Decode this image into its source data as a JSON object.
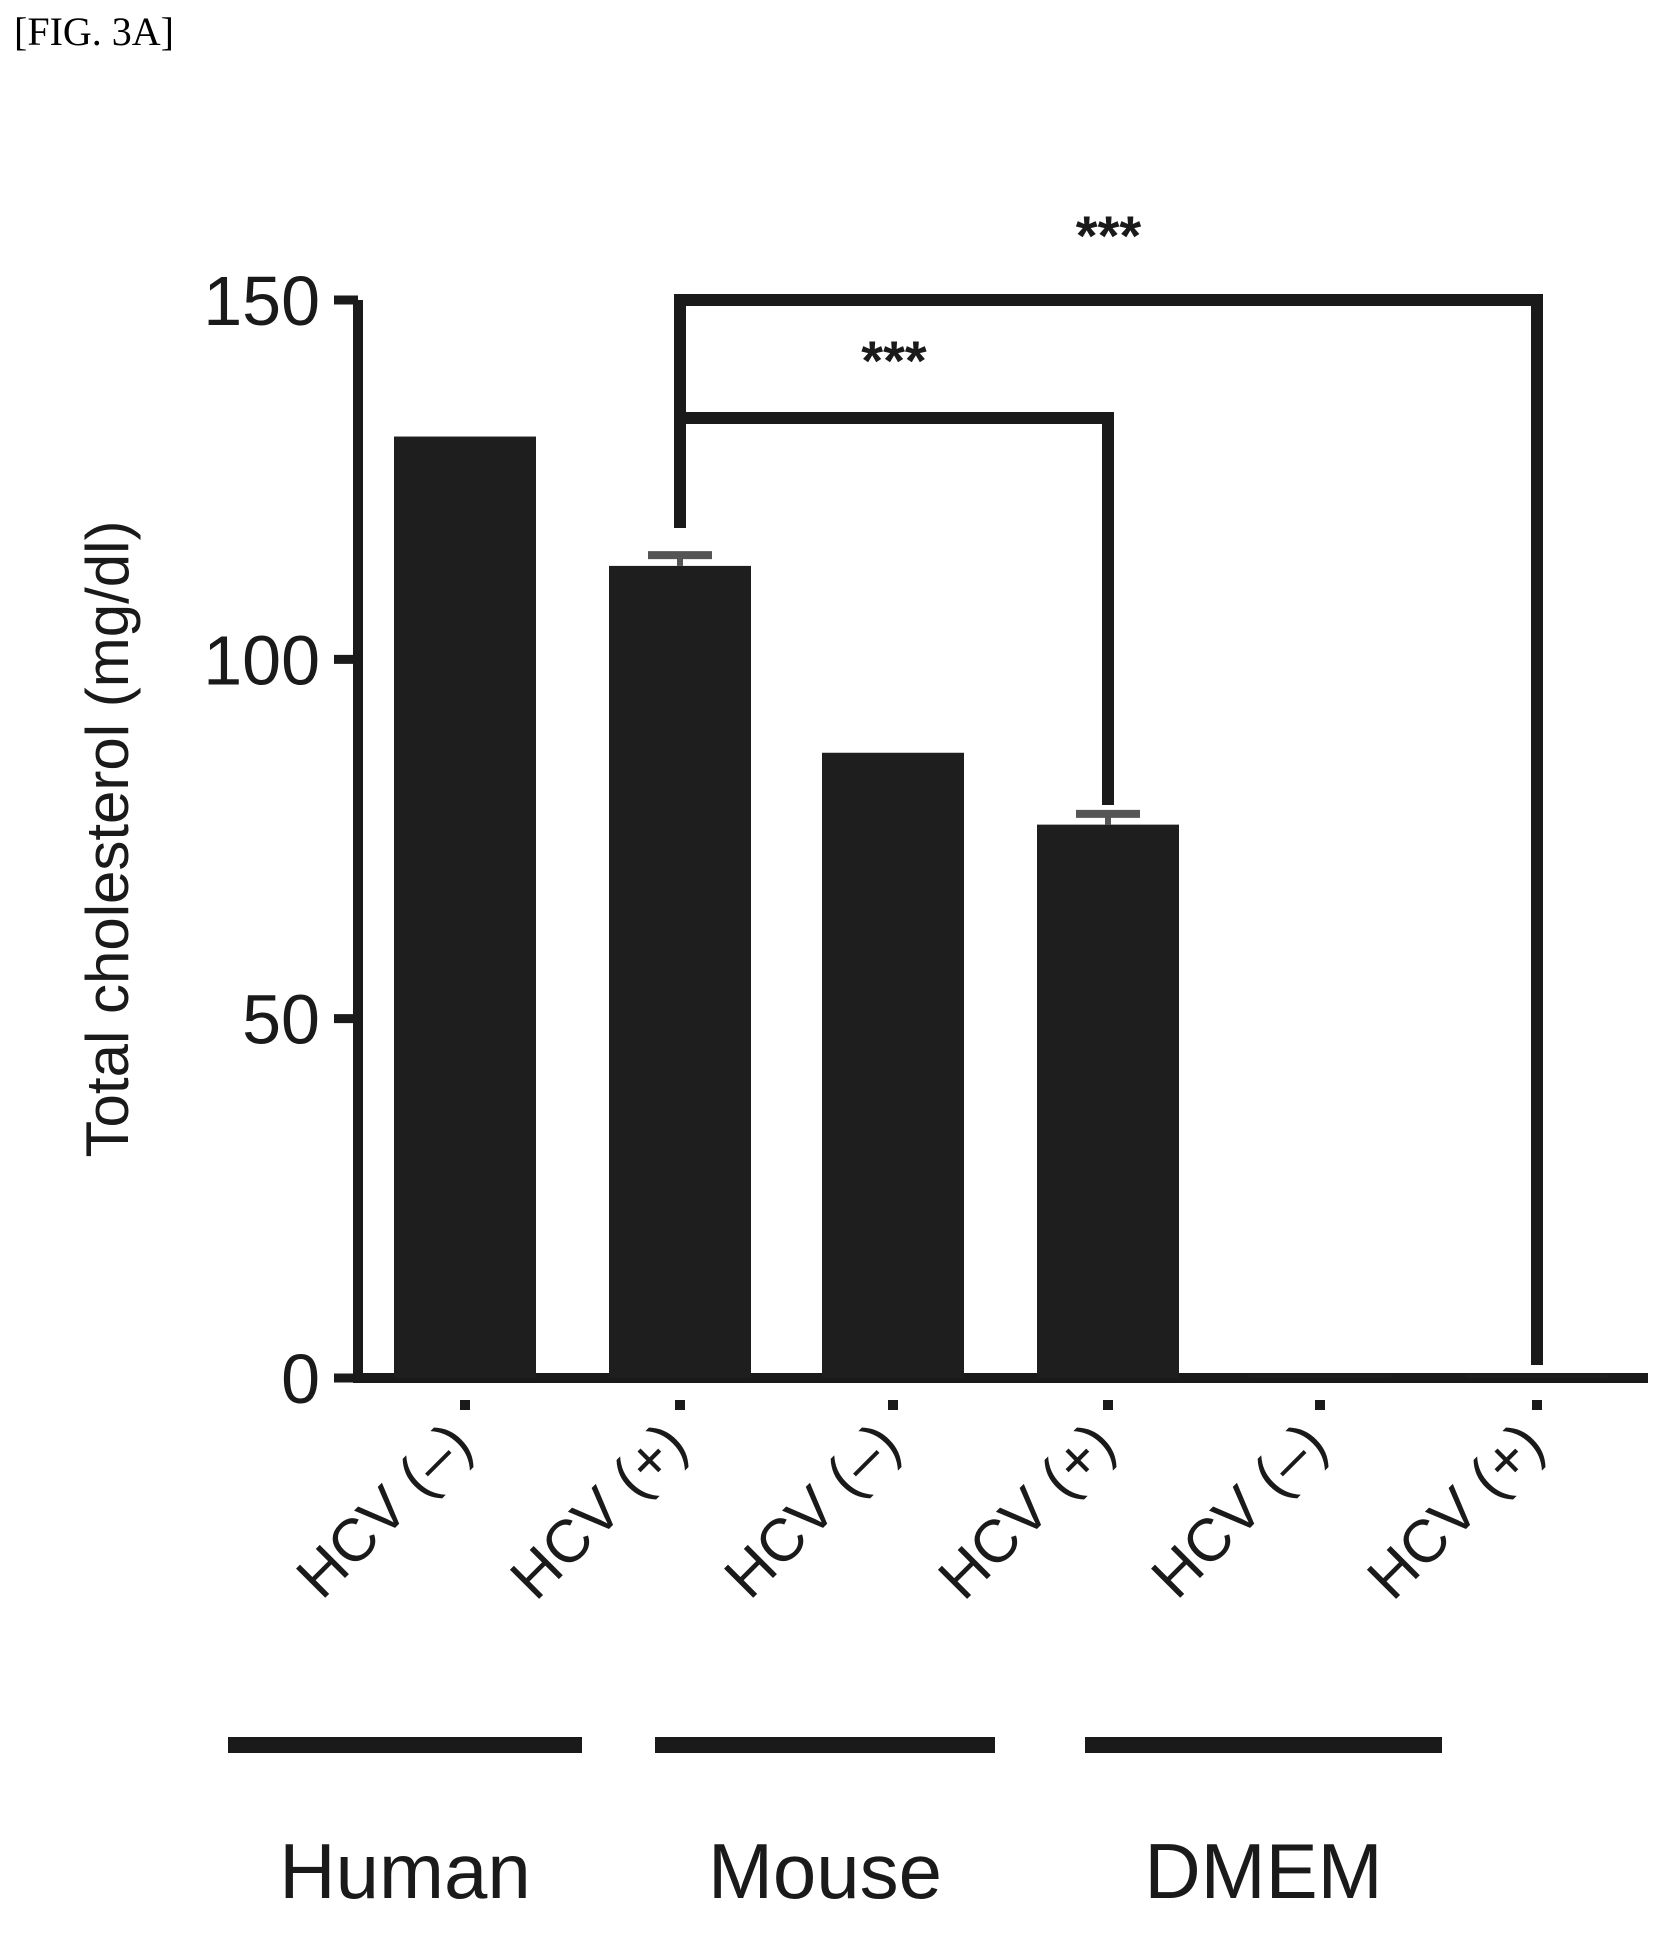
{
  "figure_label": "[FIG. 3A]",
  "chart_data": {
    "type": "bar",
    "title": "",
    "xlabel": "",
    "ylabel": "Total cholesterol (mg/dl)",
    "ylim": [
      0,
      150
    ],
    "yticks": [
      0,
      50,
      100,
      150
    ],
    "categories": [
      "HCV (–)",
      "HCV (+)",
      "HCV (–)",
      "HCV (+)",
      "HCV (–)",
      "HCV (+)"
    ],
    "values": [
      131,
      113,
      87,
      77,
      0.5,
      0.5
    ],
    "errors": [
      0,
      1.5,
      0,
      1.5,
      0,
      0
    ],
    "groups": [
      {
        "name": "Human",
        "members": [
          0,
          1
        ]
      },
      {
        "name": "Mouse",
        "members": [
          2,
          3
        ]
      },
      {
        "name": "DMEM",
        "members": [
          4,
          5
        ]
      }
    ],
    "significance": [
      {
        "from": 1,
        "to": 3,
        "label": "***"
      },
      {
        "from": 1,
        "to": 5,
        "label": "***"
      }
    ],
    "grid": false,
    "bar_color": "#1e1e1e"
  }
}
